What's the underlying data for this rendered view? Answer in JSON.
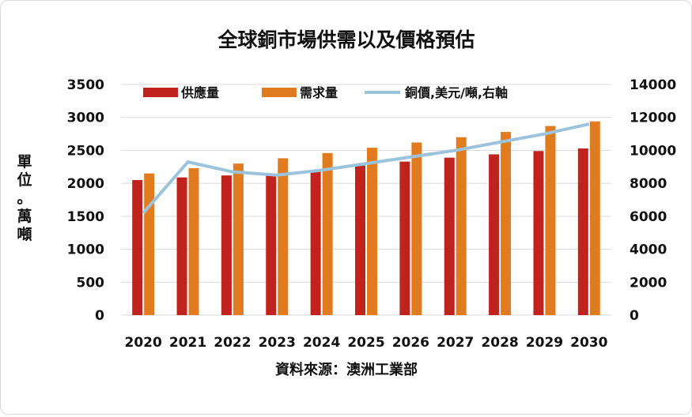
{
  "chart_data": {
    "type": "bar",
    "title": "全球銅市場供需以及價格預估",
    "categories": [
      "2020",
      "2021",
      "2022",
      "2023",
      "2024",
      "2025",
      "2026",
      "2027",
      "2028",
      "2029",
      "2030"
    ],
    "series": [
      {
        "name": "供應量",
        "kind": "bar",
        "axis": "left",
        "color": "#c0231d",
        "values": [
          2050,
          2090,
          2120,
          2150,
          2200,
          2270,
          2330,
          2390,
          2440,
          2490,
          2530
        ]
      },
      {
        "name": "需求量",
        "kind": "bar",
        "axis": "left",
        "color": "#e07b20",
        "values": [
          2150,
          2230,
          2300,
          2380,
          2460,
          2540,
          2620,
          2700,
          2780,
          2870,
          2940
        ]
      },
      {
        "name": "銅價,美元/噸,右軸",
        "kind": "line",
        "axis": "right",
        "color": "#9cc3dc",
        "values": [
          6200,
          9300,
          8700,
          8500,
          8800,
          9200,
          9600,
          10000,
          10500,
          11000,
          11600
        ]
      }
    ],
    "y_left": {
      "label": "單位。萬噸",
      "lim": [
        0,
        3500
      ],
      "ticks": [
        "0",
        "500",
        "1000",
        "1500",
        "2000",
        "2500",
        "3000",
        "3500"
      ]
    },
    "y_right": {
      "lim": [
        0,
        14000
      ],
      "ticks": [
        "0",
        "2000",
        "4000",
        "6000",
        "8000",
        "10000",
        "12000",
        "14000"
      ]
    },
    "grid": true,
    "legend_position": "top",
    "source": "資料來源：澳洲工業部"
  }
}
